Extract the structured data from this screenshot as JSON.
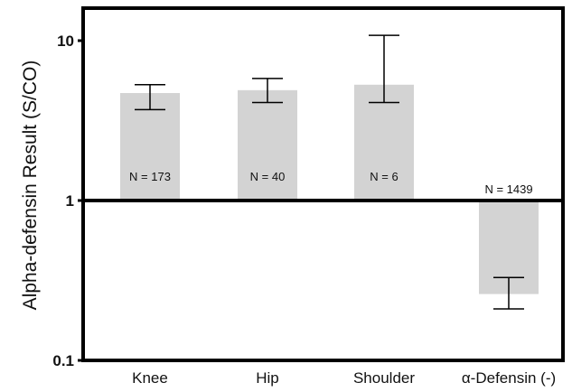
{
  "chart_data": {
    "type": "bar",
    "ylabel": "Alpha-defensin Result (S/CO)",
    "yscale": "log",
    "ylim": [
      0.1,
      20
    ],
    "yticks": [
      {
        "value": 10,
        "label": "10"
      },
      {
        "value": 1,
        "label": "1"
      },
      {
        "value": 0.1,
        "label": "0.1"
      }
    ],
    "baseline": 1,
    "categories": [
      "Knee",
      "Hip",
      "Shoulder",
      "α-Defensin (-)"
    ],
    "values": [
      4.7,
      4.9,
      5.3,
      0.26
    ],
    "error_low": [
      3.7,
      4.1,
      4.1,
      0.21
    ],
    "error_high": [
      5.3,
      5.8,
      10.8,
      0.33
    ],
    "annotations": [
      "N = 173",
      "N = 40",
      "N = 6",
      "N = 1439"
    ],
    "bar_color": "#d3d3d3",
    "grid": false
  }
}
